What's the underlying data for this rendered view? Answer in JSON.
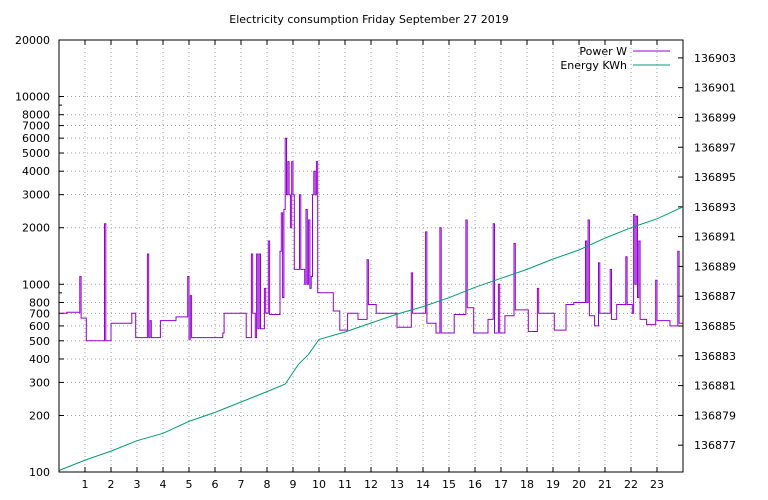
{
  "chart_data": {
    "type": "line",
    "title": "Electricity consumption Friday September 27 2019",
    "xlabel": "",
    "ylabel": "",
    "y2label": "",
    "grid": true,
    "legend_position": "top-right",
    "xlim": [
      0,
      24
    ],
    "ylim": [
      100,
      20000
    ],
    "y_scale": "log",
    "y2lim": [
      136875.2,
      136904.2
    ],
    "x_ticks": [
      1,
      2,
      3,
      4,
      5,
      6,
      7,
      8,
      9,
      10,
      11,
      12,
      13,
      14,
      15,
      16,
      17,
      18,
      19,
      20,
      21,
      22,
      23
    ],
    "y_ticks": [
      100,
      200,
      300,
      400,
      500,
      600,
      700,
      800,
      1000,
      2000,
      3000,
      4000,
      5000,
      6000,
      7000,
      8000,
      10000,
      20000
    ],
    "y2_ticks": [
      136877,
      136879,
      136881,
      136883,
      136885,
      136887,
      136889,
      136891,
      136893,
      136895,
      136897,
      136899,
      136901,
      136903
    ],
    "series": [
      {
        "name": "Power W",
        "axis": "left",
        "color": "#9400d3",
        "step": true,
        "points": [
          [
            0.0,
            700
          ],
          [
            0.3,
            710
          ],
          [
            0.8,
            700
          ],
          [
            0.8,
            1100
          ],
          [
            0.85,
            660
          ],
          [
            1.0,
            660
          ],
          [
            1.05,
            500
          ],
          [
            1.75,
            500
          ],
          [
            1.75,
            2100
          ],
          [
            1.8,
            500
          ],
          [
            2.0,
            500
          ],
          [
            2.0,
            620
          ],
          [
            2.8,
            620
          ],
          [
            2.8,
            700
          ],
          [
            2.95,
            520
          ],
          [
            3.4,
            520
          ],
          [
            3.4,
            1450
          ],
          [
            3.45,
            520
          ],
          [
            3.5,
            520
          ],
          [
            3.5,
            640
          ],
          [
            3.55,
            520
          ],
          [
            3.9,
            520
          ],
          [
            3.9,
            640
          ],
          [
            4.5,
            640
          ],
          [
            4.5,
            670
          ],
          [
            4.95,
            670
          ],
          [
            4.95,
            1100
          ],
          [
            5.0,
            510
          ],
          [
            5.05,
            870
          ],
          [
            5.1,
            520
          ],
          [
            6.3,
            520
          ],
          [
            6.3,
            550
          ],
          [
            6.35,
            700
          ],
          [
            7.2,
            700
          ],
          [
            7.2,
            520
          ],
          [
            7.4,
            520
          ],
          [
            7.4,
            1450
          ],
          [
            7.45,
            700
          ],
          [
            7.55,
            520
          ],
          [
            7.6,
            1450
          ],
          [
            7.65,
            580
          ],
          [
            7.7,
            1450
          ],
          [
            7.75,
            580
          ],
          [
            7.9,
            580
          ],
          [
            7.9,
            950
          ],
          [
            7.95,
            700
          ],
          [
            8.05,
            1700
          ],
          [
            8.1,
            690
          ],
          [
            8.45,
            690
          ],
          [
            8.5,
            1500
          ],
          [
            8.55,
            2400
          ],
          [
            8.6,
            850
          ],
          [
            8.65,
            2500
          ],
          [
            8.7,
            6000
          ],
          [
            8.75,
            3000
          ],
          [
            8.8,
            4500
          ],
          [
            8.85,
            3000
          ],
          [
            8.9,
            2000
          ],
          [
            8.95,
            4500
          ],
          [
            9.0,
            3000
          ],
          [
            9.05,
            1200
          ],
          [
            9.2,
            1200
          ],
          [
            9.25,
            3000
          ],
          [
            9.3,
            1200
          ],
          [
            9.4,
            1200
          ],
          [
            9.45,
            1000
          ],
          [
            9.5,
            2500
          ],
          [
            9.55,
            1000
          ],
          [
            9.6,
            2200
          ],
          [
            9.65,
            950
          ],
          [
            9.7,
            1100
          ],
          [
            9.75,
            3000
          ],
          [
            9.8,
            4000
          ],
          [
            9.85,
            3000
          ],
          [
            9.9,
            4500
          ],
          [
            9.95,
            900
          ],
          [
            10.55,
            900
          ],
          [
            10.55,
            720
          ],
          [
            10.8,
            720
          ],
          [
            10.8,
            570
          ],
          [
            11.1,
            570
          ],
          [
            11.1,
            700
          ],
          [
            11.5,
            700
          ],
          [
            11.5,
            650
          ],
          [
            11.85,
            650
          ],
          [
            11.85,
            1350
          ],
          [
            11.9,
            780
          ],
          [
            12.2,
            780
          ],
          [
            12.2,
            700
          ],
          [
            13.0,
            700
          ],
          [
            13.0,
            590
          ],
          [
            13.55,
            590
          ],
          [
            13.55,
            1150
          ],
          [
            13.6,
            700
          ],
          [
            14.1,
            700
          ],
          [
            14.1,
            1900
          ],
          [
            14.15,
            620
          ],
          [
            14.5,
            620
          ],
          [
            14.5,
            550
          ],
          [
            14.65,
            550
          ],
          [
            14.65,
            2000
          ],
          [
            14.7,
            550
          ],
          [
            15.2,
            550
          ],
          [
            15.2,
            690
          ],
          [
            15.65,
            690
          ],
          [
            15.65,
            2200
          ],
          [
            15.7,
            750
          ],
          [
            15.95,
            750
          ],
          [
            15.95,
            550
          ],
          [
            16.5,
            550
          ],
          [
            16.5,
            650
          ],
          [
            16.7,
            650
          ],
          [
            16.7,
            2100
          ],
          [
            16.75,
            550
          ],
          [
            16.9,
            550
          ],
          [
            16.9,
            1000
          ],
          [
            16.95,
            550
          ],
          [
            17.15,
            550
          ],
          [
            17.15,
            680
          ],
          [
            17.5,
            680
          ],
          [
            17.5,
            1650
          ],
          [
            17.55,
            730
          ],
          [
            18.05,
            730
          ],
          [
            18.05,
            560
          ],
          [
            18.4,
            560
          ],
          [
            18.4,
            950
          ],
          [
            18.45,
            700
          ],
          [
            19.05,
            700
          ],
          [
            19.05,
            570
          ],
          [
            19.5,
            570
          ],
          [
            19.5,
            780
          ],
          [
            19.8,
            780
          ],
          [
            19.8,
            800
          ],
          [
            20.2,
            800
          ],
          [
            20.25,
            1700
          ],
          [
            20.3,
            800
          ],
          [
            20.35,
            2200
          ],
          [
            20.4,
            680
          ],
          [
            20.6,
            680
          ],
          [
            20.6,
            600
          ],
          [
            20.75,
            600
          ],
          [
            20.75,
            1300
          ],
          [
            20.8,
            700
          ],
          [
            21.2,
            700
          ],
          [
            21.2,
            1200
          ],
          [
            21.25,
            650
          ],
          [
            21.45,
            650
          ],
          [
            21.45,
            780
          ],
          [
            21.8,
            780
          ],
          [
            21.8,
            1400
          ],
          [
            21.85,
            780
          ],
          [
            22.0,
            780
          ],
          [
            22.05,
            700
          ],
          [
            22.1,
            2350
          ],
          [
            22.15,
            1000
          ],
          [
            22.2,
            2300
          ],
          [
            22.25,
            850
          ],
          [
            22.3,
            1700
          ],
          [
            22.35,
            650
          ],
          [
            22.6,
            650
          ],
          [
            22.6,
            610
          ],
          [
            22.95,
            610
          ],
          [
            22.95,
            1050
          ],
          [
            23.0,
            640
          ],
          [
            23.5,
            640
          ],
          [
            23.5,
            600
          ],
          [
            23.8,
            600
          ],
          [
            23.8,
            1500
          ],
          [
            23.85,
            620
          ],
          [
            24.0,
            620
          ]
        ]
      },
      {
        "name": "Energy KWh",
        "axis": "right",
        "color": "#009e73",
        "step": false,
        "points": [
          [
            0.0,
            136875.3
          ],
          [
            1.0,
            136876.0
          ],
          [
            2.0,
            136876.6
          ],
          [
            3.0,
            136877.3
          ],
          [
            4.0,
            136877.8
          ],
          [
            5.0,
            136878.6
          ],
          [
            6.0,
            136879.2
          ],
          [
            7.0,
            136879.9
          ],
          [
            8.0,
            136880.6
          ],
          [
            8.7,
            136881.1
          ],
          [
            9.2,
            136882.4
          ],
          [
            9.6,
            136883.1
          ],
          [
            10.0,
            136884.1
          ],
          [
            11.0,
            136884.6
          ],
          [
            12.0,
            136885.2
          ],
          [
            13.0,
            136885.8
          ],
          [
            14.0,
            136886.3
          ],
          [
            15.0,
            136886.9
          ],
          [
            16.0,
            136887.6
          ],
          [
            17.0,
            136888.2
          ],
          [
            18.0,
            136888.8
          ],
          [
            19.0,
            136889.5
          ],
          [
            20.0,
            136890.1
          ],
          [
            21.0,
            136890.9
          ],
          [
            22.0,
            136891.6
          ],
          [
            23.0,
            136892.2
          ],
          [
            24.0,
            136893.0
          ]
        ]
      }
    ]
  }
}
